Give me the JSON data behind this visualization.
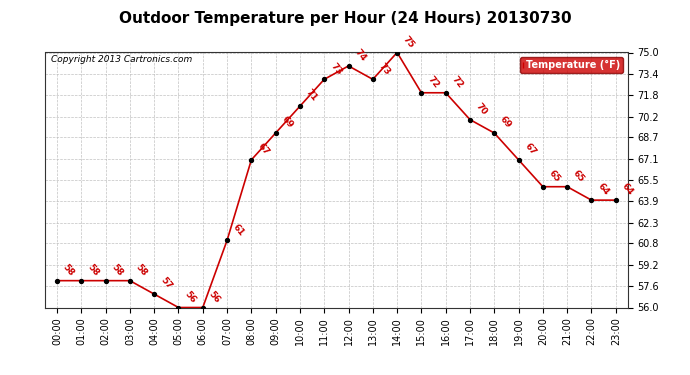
{
  "title": "Outdoor Temperature per Hour (24 Hours) 20130730",
  "copyright": "Copyright 2013 Cartronics.com",
  "legend_label": "Temperature (°F)",
  "hours": [
    0,
    1,
    2,
    3,
    4,
    5,
    6,
    7,
    8,
    9,
    10,
    11,
    12,
    13,
    14,
    15,
    16,
    17,
    18,
    19,
    20,
    21,
    22,
    23
  ],
  "hour_labels": [
    "00:00",
    "01:00",
    "02:00",
    "03:00",
    "04:00",
    "05:00",
    "06:00",
    "07:00",
    "08:00",
    "09:00",
    "10:00",
    "11:00",
    "12:00",
    "13:00",
    "14:00",
    "15:00",
    "16:00",
    "17:00",
    "18:00",
    "19:00",
    "20:00",
    "21:00",
    "22:00",
    "23:00"
  ],
  "temps": [
    58,
    58,
    58,
    58,
    57,
    56,
    56,
    61,
    67,
    69,
    71,
    73,
    74,
    73,
    75,
    72,
    72,
    70,
    69,
    67,
    65,
    65,
    64,
    64
  ],
  "ylim_min": 56.0,
  "ylim_max": 75.0,
  "yticks": [
    56.0,
    57.6,
    59.2,
    60.8,
    62.3,
    63.9,
    65.5,
    67.1,
    68.7,
    70.2,
    71.8,
    73.4,
    75.0
  ],
  "line_color": "#cc0000",
  "dot_color": "#000000",
  "label_color": "#cc0000",
  "bg_color": "#ffffff",
  "grid_color": "#bbbbbb",
  "title_fontsize": 11,
  "tick_fontsize": 7,
  "legend_bg": "#cc0000",
  "legend_fg": "#ffffff"
}
